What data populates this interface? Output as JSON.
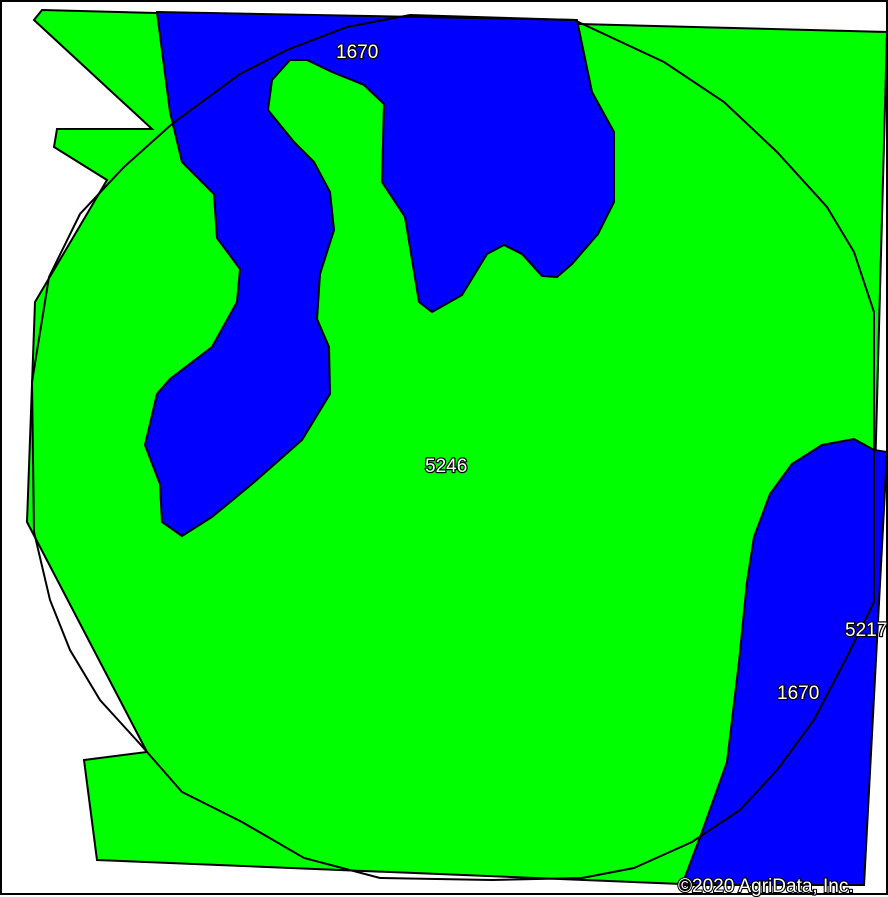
{
  "map": {
    "colors": {
      "soil_green": "#00ff00",
      "soil_blue": "#0000ff",
      "boundary": "#000000",
      "background": "#ffffff"
    },
    "labels": {
      "map_unit_1670_north": "1670",
      "map_unit_5246": "5246",
      "map_unit_5217": "5217",
      "map_unit_1670_east": "1670"
    },
    "copyright": "©2020 AgriData, Inc."
  }
}
